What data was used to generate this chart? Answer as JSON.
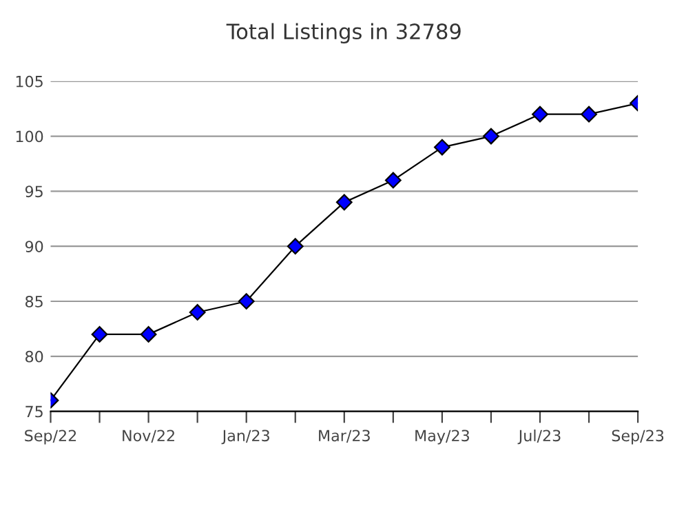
{
  "chart_data": {
    "type": "line",
    "title": "Total Listings in 32789",
    "categories": [
      "Sep/22",
      null,
      "Nov/22",
      null,
      "Jan/23",
      null,
      "Mar/23",
      null,
      "May/23",
      null,
      "Jul/23",
      null,
      "Sep/23"
    ],
    "series": [
      {
        "color": "#0000ff",
        "values": [
          76,
          82,
          82,
          84,
          85,
          90,
          94,
          96,
          99,
          100,
          102,
          102,
          103
        ]
      }
    ],
    "ylim": [
      75,
      105
    ],
    "yticks": [
      75,
      80,
      85,
      90,
      95,
      100,
      105
    ],
    "grid": "y",
    "marker": "diamond",
    "line_style": "solid"
  }
}
